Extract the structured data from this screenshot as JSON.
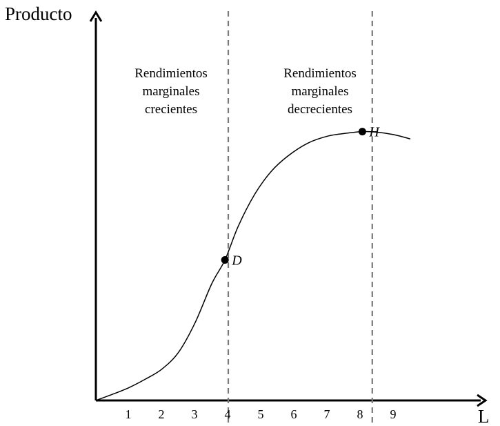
{
  "chart_data": {
    "type": "line",
    "ylabel": "Producto",
    "xlabel": "L",
    "x_ticks": [
      "1",
      "2",
      "3",
      "4",
      "5",
      "6",
      "7",
      "8",
      "9"
    ],
    "xlim": [
      0,
      10
    ],
    "ylim": [
      0,
      10
    ],
    "grid": false,
    "series": [
      {
        "points": [
          [
            0.0,
            0.0
          ],
          [
            0.5,
            0.2
          ],
          [
            1.0,
            0.42
          ],
          [
            1.5,
            0.7
          ],
          [
            2.0,
            1.03
          ],
          [
            2.5,
            1.58
          ],
          [
            3.0,
            2.55
          ],
          [
            3.5,
            3.82
          ],
          [
            3.9,
            4.6
          ],
          [
            4.3,
            5.7
          ],
          [
            4.8,
            6.75
          ],
          [
            5.3,
            7.5
          ],
          [
            5.8,
            8.0
          ],
          [
            6.4,
            8.42
          ],
          [
            7.0,
            8.65
          ],
          [
            7.6,
            8.75
          ],
          [
            8.05,
            8.8
          ],
          [
            8.5,
            8.78
          ],
          [
            9.0,
            8.7
          ],
          [
            9.5,
            8.56
          ]
        ]
      }
    ],
    "points": [
      {
        "label": "D",
        "x": 3.9,
        "y": 4.6
      },
      {
        "label": "H",
        "x": 8.05,
        "y": 8.8
      }
    ],
    "vlines": [
      4.0,
      8.35
    ],
    "regions": [
      {
        "lines": [
          "Rendimientos",
          "marginales",
          "crecientes"
        ]
      },
      {
        "lines": [
          "Rendimientos",
          "marginales",
          "decrecientes"
        ]
      }
    ]
  }
}
